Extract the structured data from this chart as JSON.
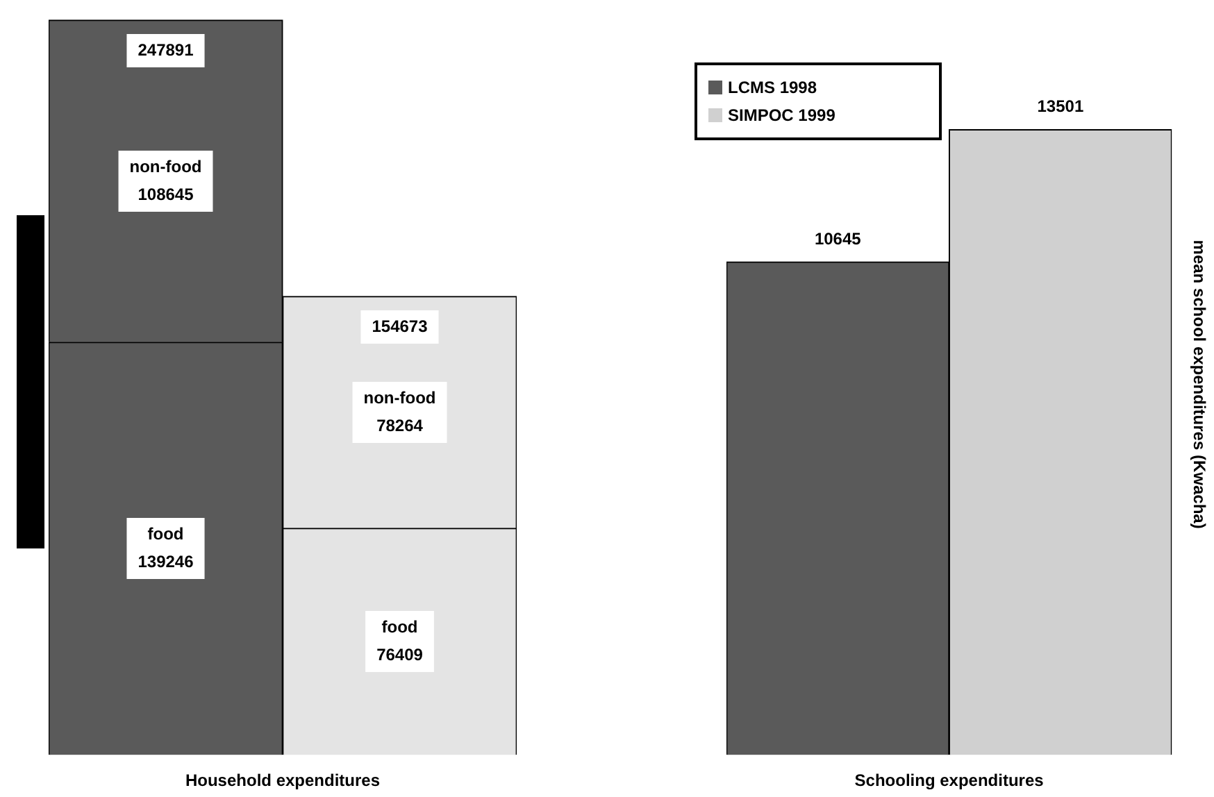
{
  "chart_data": [
    {
      "type": "bar",
      "stacked": true,
      "xlabel": "Household expenditures",
      "categories": [
        null,
        null
      ],
      "series": [
        {
          "name": "food",
          "colors": [
            "#5a5a5a",
            "#e4e4e4"
          ],
          "values": [
            139246,
            76409
          ]
        },
        {
          "name": "non-food",
          "colors": [
            "#5a5a5a",
            "#e4e4e4"
          ],
          "values": [
            108645,
            78264
          ]
        }
      ],
      "data_labels": true,
      "totals": [
        "247891",
        "154673"
      ],
      "legend": false
    },
    {
      "type": "bar",
      "xlabel": "Schooling expenditures",
      "ylabel": "mean school expenditures (Kwacha)",
      "categories": [
        null
      ],
      "series": [
        {
          "name": "LCMS 1998",
          "color": "#5a5a5a",
          "values": [
            10645
          ]
        },
        {
          "name": "SIMPOC 1999",
          "color": "#d0d0d0",
          "values": [
            13501
          ]
        }
      ],
      "data_labels": true,
      "legend": "top left"
    }
  ]
}
